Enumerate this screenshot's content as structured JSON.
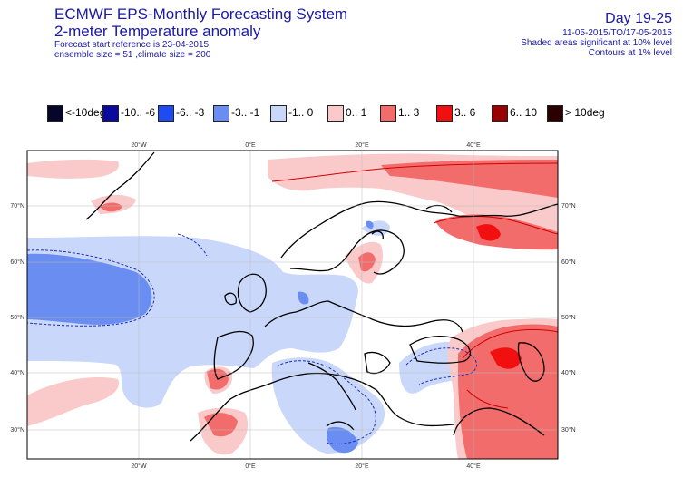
{
  "header": {
    "title": "ECMWF EPS-Monthly Forecasting System",
    "subtitle": "2-meter Temperature anomaly",
    "forecast_ref": "Forecast start reference is 23-04-2015",
    "ensemble": "ensemble size = 51  ,climate size = 200",
    "day_range": "Day 19-25",
    "period": "11-05-2015/TO/17-05-2015",
    "shaded_note": "Shaded areas significant at 10% level",
    "contour_note": "Contours at 1% level"
  },
  "legend": [
    {
      "label": "<-10deg",
      "color": "#06062a"
    },
    {
      "label": "-10.. -6",
      "color": "#0a0a9c"
    },
    {
      "label": "-6.. -3",
      "color": "#1c4cf2"
    },
    {
      "label": "-3.. -1",
      "color": "#6a8df2"
    },
    {
      "label": "-1..  0",
      "color": "#c9d8fa"
    },
    {
      "label": "0..  1",
      "color": "#fac9c9"
    },
    {
      "label": "1..  3",
      "color": "#f26c6c"
    },
    {
      "label": "3..  6",
      "color": "#f20f0f"
    },
    {
      "label": "6.. 10",
      "color": "#990000"
    },
    {
      "label": "> 10deg",
      "color": "#2a0000"
    }
  ],
  "map": {
    "lon_labels": [
      "20°W",
      "0°E",
      "20°E",
      "40°E"
    ],
    "lat_labels": [
      "70°N",
      "60°N",
      "50°N",
      "40°N",
      "30°N"
    ]
  }
}
